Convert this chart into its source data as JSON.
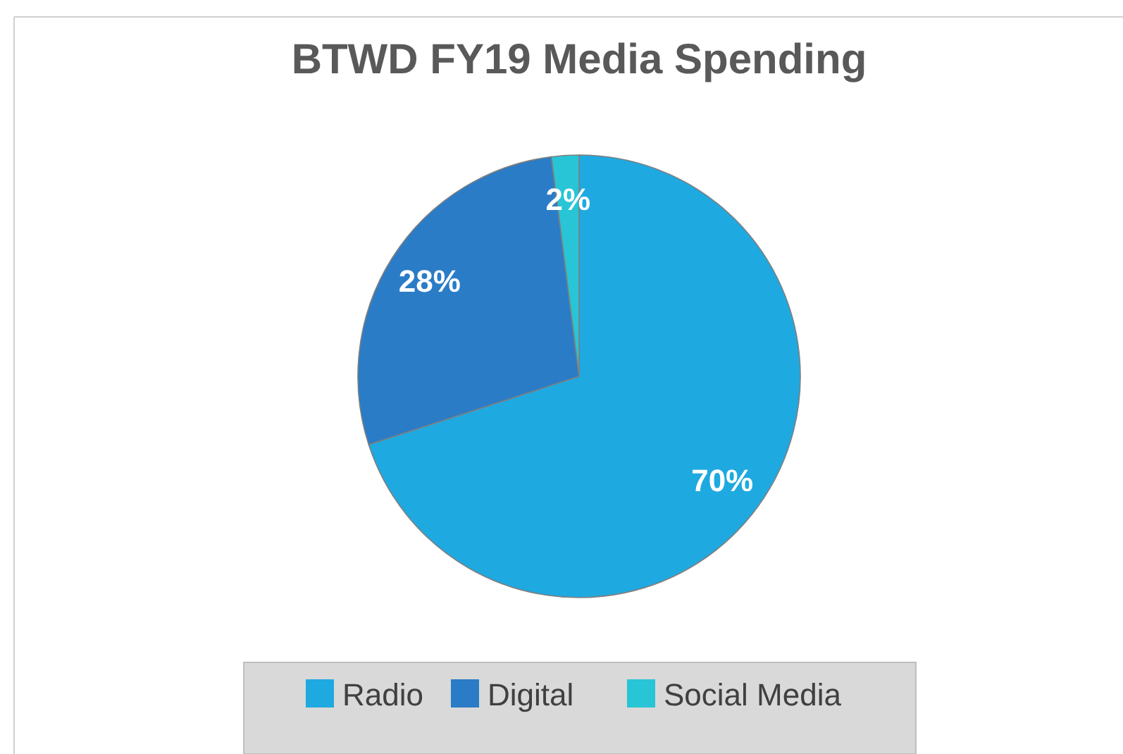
{
  "chart_data": {
    "type": "pie",
    "title": "BTWD FY19 Media Spending",
    "categories": [
      "Radio",
      "Digital",
      "Social Media"
    ],
    "values": [
      70,
      28,
      2
    ],
    "colors": [
      "#1fa9e1",
      "#2a7cc7",
      "#27c5d6"
    ],
    "value_labels": [
      "70%",
      "28%",
      "2%"
    ],
    "legend": "bottom"
  }
}
